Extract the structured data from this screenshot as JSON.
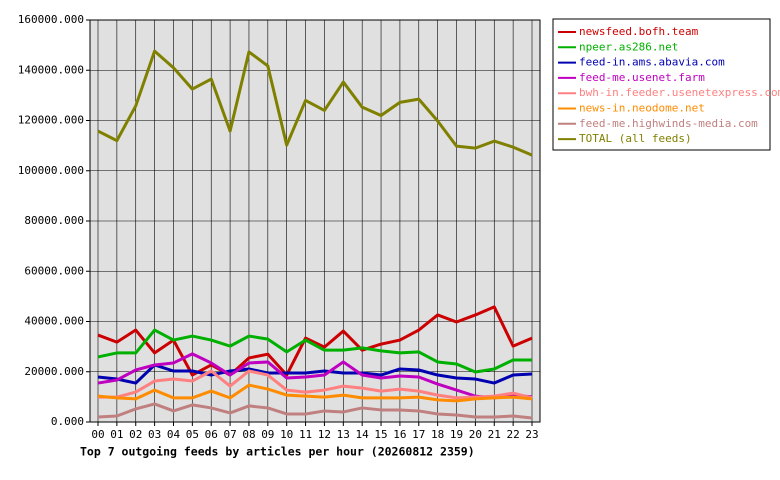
{
  "chart_data": {
    "type": "line",
    "title": "Top 7 outgoing feeds by articles per hour (20260812 2359)",
    "categories": [
      "00",
      "01",
      "02",
      "03",
      "04",
      "05",
      "06",
      "07",
      "08",
      "09",
      "10",
      "11",
      "12",
      "13",
      "14",
      "15",
      "16",
      "17",
      "18",
      "19",
      "20",
      "21",
      "22",
      "23"
    ],
    "ylim": [
      0,
      160000
    ],
    "yticks": [
      {
        "value": 0,
        "label": "0.000"
      },
      {
        "value": 20000,
        "label": "20000.000"
      },
      {
        "value": 40000,
        "label": "40000.000"
      },
      {
        "value": 60000,
        "label": "60000.000"
      },
      {
        "value": 80000,
        "label": "80000.000"
      },
      {
        "value": 100000,
        "label": "100000.000"
      },
      {
        "value": 120000,
        "label": "120000.000"
      },
      {
        "value": 140000,
        "label": "140000.000"
      },
      {
        "value": 160000,
        "label": "160000.000"
      }
    ],
    "grid": true,
    "legend": "right",
    "series": [
      {
        "name": "newsfeed.bofh.team",
        "color": "#cc0000",
        "values": [
          34600,
          31800,
          36600,
          27500,
          32600,
          18700,
          22700,
          18700,
          25500,
          27000,
          18700,
          33400,
          29800,
          36200,
          28600,
          31000,
          32600,
          36600,
          42600,
          39800,
          42600,
          45800,
          30200,
          33400
        ]
      },
      {
        "name": "npeer.as286.net",
        "color": "#00b000",
        "values": [
          25900,
          27500,
          27500,
          36600,
          32600,
          34200,
          32600,
          30200,
          34200,
          33000,
          27900,
          32600,
          28600,
          28600,
          29500,
          28300,
          27500,
          27900,
          23900,
          23100,
          19900,
          21100,
          24700,
          24700
        ]
      },
      {
        "name": "feed-in.ams.abavia.com",
        "color": "#0000b0",
        "values": [
          17900,
          17100,
          15500,
          22700,
          20300,
          20300,
          18700,
          20300,
          21100,
          19500,
          19500,
          19500,
          20300,
          19500,
          19500,
          18700,
          21100,
          20700,
          18700,
          17500,
          17100,
          15500,
          18700,
          19100
        ]
      },
      {
        "name": "feed-me.usenet.farm",
        "color": "#c000c0",
        "values": [
          15500,
          16700,
          20700,
          22700,
          23500,
          27100,
          23500,
          18700,
          23500,
          23900,
          17500,
          17900,
          18700,
          23900,
          18700,
          17500,
          18300,
          17900,
          15100,
          12700,
          10300,
          9600,
          10700,
          10000
        ]
      },
      {
        "name": "bwh-in.feeder.usenetexpress.com",
        "color": "#ff8080",
        "values": [
          9900,
          9900,
          11900,
          16300,
          17100,
          16300,
          20300,
          14300,
          20300,
          18700,
          12700,
          11900,
          12700,
          14300,
          13500,
          12300,
          13100,
          12300,
          10700,
          9600,
          9900,
          10300,
          11500,
          9600
        ]
      },
      {
        "name": "news-in.neodome.net",
        "color": "#ff8c00",
        "values": [
          10300,
          9600,
          9200,
          12700,
          9600,
          9600,
          12300,
          9600,
          14700,
          13100,
          10700,
          10300,
          9900,
          10700,
          9600,
          9600,
          9600,
          9900,
          8800,
          8400,
          9200,
          9600,
          9900,
          9200
        ]
      },
      {
        "name": "feed-me.highwinds-media.com",
        "color": "#c08080",
        "values": [
          2000,
          2400,
          5200,
          7200,
          4400,
          6800,
          5600,
          3600,
          6400,
          5600,
          3200,
          3200,
          4400,
          4000,
          5600,
          4800,
          4800,
          4400,
          3200,
          2800,
          2000,
          2000,
          2400,
          1600
        ]
      },
      {
        "name": "TOTAL (all feeds)",
        "color": "#808000",
        "values": [
          115800,
          112000,
          125800,
          147600,
          141000,
          132500,
          136500,
          115800,
          147300,
          141700,
          110200,
          128000,
          124000,
          135300,
          125300,
          122000,
          127200,
          128500,
          119800,
          109800,
          109000,
          111800,
          109400,
          106200
        ]
      }
    ]
  }
}
